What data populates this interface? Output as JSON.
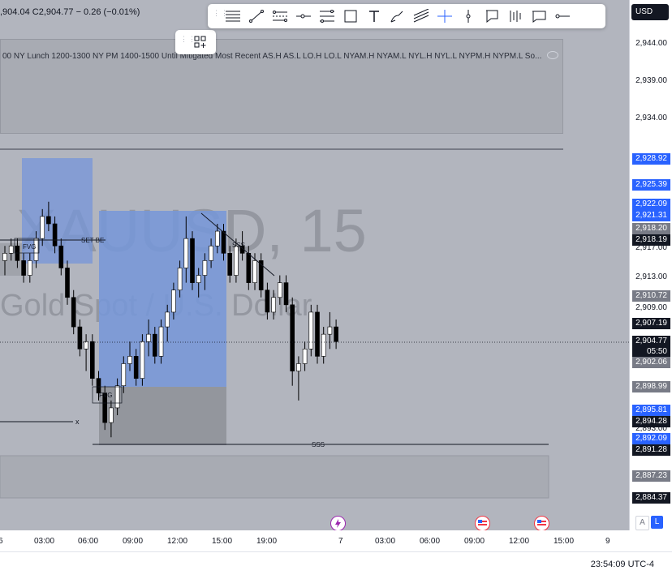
{
  "header": {
    "ohlc_text": ",904.04 C2,904.77 − 0.26 (−0.01%)"
  },
  "legend": {
    "text": "00 NY Lunch 1200-1300 NY PM 1400-1500 Until Mitigated Most Recent AS.H AS.L LO.H LO.L NYAM.H NYAM.L NYL.H NYL.L NYPM.H NYPM.L So..."
  },
  "watermark": {
    "symbol": "XAUUSD, 15",
    "description": "Gold Spot / U.S. Dollar"
  },
  "annotations": {
    "set_be": "SET BE",
    "fvg": "FVG",
    "fvg2": "FVG",
    "sss": "SSS",
    "sss_bottom": "SSS",
    "x_mark": "x"
  },
  "drawing_toolbar": {
    "tools": [
      "horizontal-lines",
      "trend-line",
      "parallel-channel",
      "horizontal-ray",
      "fib-retracement",
      "rectangle",
      "text",
      "brush",
      "regression-trend",
      "crosshair",
      "vertical-line",
      "callout",
      "long-short",
      "comment",
      "ray"
    ]
  },
  "price_scale": {
    "currency": "USD",
    "ticks": [
      "2,944.00",
      "2,939.00",
      "2,934.00",
      "2,917.00",
      "2,913.00",
      "2,909.00",
      "2,893.00"
    ],
    "labels": [
      {
        "text": "2,928.92",
        "bg": "#2962ff",
        "fg": "#ffffff"
      },
      {
        "text": "2,925.39",
        "bg": "#2962ff",
        "fg": "#ffffff"
      },
      {
        "text": "2,922.09",
        "bg": "#2962ff",
        "fg": "#ffffff"
      },
      {
        "text": "2,921.31",
        "bg": "#2962ff",
        "fg": "#ffffff"
      },
      {
        "text": "2,918.20",
        "bg": "#787b86",
        "fg": "#ffffff"
      },
      {
        "text": "2,918.19",
        "bg": "#131722",
        "fg": "#ffffff"
      },
      {
        "text": "2,910.72",
        "bg": "#787b86",
        "fg": "#ffffff"
      },
      {
        "text": "2,907.19",
        "bg": "#131722",
        "fg": "#ffffff"
      },
      {
        "text": "2,904.77",
        "bg": "#131722",
        "fg": "#ffffff"
      },
      {
        "text": "05:50",
        "bg": "#131722",
        "fg": "#ffffff"
      },
      {
        "text": "2,902.06",
        "bg": "#787b86",
        "fg": "#ffffff"
      },
      {
        "text": "2,898.99",
        "bg": "#787b86",
        "fg": "#ffffff"
      },
      {
        "text": "2,895.81",
        "bg": "#2962ff",
        "fg": "#ffffff"
      },
      {
        "text": "2,894.28",
        "bg": "#131722",
        "fg": "#ffffff"
      },
      {
        "text": "2,892.09",
        "bg": "#2962ff",
        "fg": "#ffffff"
      },
      {
        "text": "2,891.28",
        "bg": "#131722",
        "fg": "#ffffff"
      },
      {
        "text": "2,887.23",
        "bg": "#787b86",
        "fg": "#ffffff"
      },
      {
        "text": "2,884.37",
        "bg": "#131722",
        "fg": "#ffffff"
      }
    ]
  },
  "time_axis": {
    "ticks": [
      "6",
      "03:00",
      "06:00",
      "09:00",
      "12:00",
      "15:00",
      "19:00",
      "7",
      "03:00",
      "06:00",
      "09:00",
      "12:00",
      "15:00",
      "9"
    ]
  },
  "scale_buttons": {
    "auto": "A",
    "log": "L"
  },
  "status": {
    "clock": "23:54:09 UTC-4"
  },
  "colors": {
    "chart_bg": "#b2b5be",
    "blue_zone": "#7596d9",
    "accent": "#2962ff",
    "candle_bull": "#ffffff",
    "candle_bear": "#000000"
  },
  "chart_data": {
    "type": "candlestick",
    "title": "XAUUSD, 15",
    "ylim": [
      2882,
      2947
    ],
    "last_price": 2904.77,
    "candles": [
      [
        2916,
        2918,
        2914,
        2917
      ],
      [
        2917,
        2919,
        2916,
        2918
      ],
      [
        2918,
        2919,
        2915,
        2916
      ],
      [
        2916,
        2917,
        2913,
        2914
      ],
      [
        2914,
        2917,
        2913,
        2916
      ],
      [
        2916,
        2920,
        2915,
        2919
      ],
      [
        2919,
        2923,
        2918,
        2922
      ],
      [
        2922,
        2924,
        2920,
        2921
      ],
      [
        2921,
        2922,
        2917,
        2918
      ],
      [
        2918,
        2919,
        2914,
        2915
      ],
      [
        2915,
        2916,
        2910,
        2911
      ],
      [
        2911,
        2912,
        2906,
        2907
      ],
      [
        2907,
        2908,
        2903,
        2904
      ],
      [
        2904,
        2906,
        2901,
        2905
      ],
      [
        2905,
        2906,
        2899,
        2900
      ],
      [
        2900,
        2901,
        2897,
        2898
      ],
      [
        2898,
        2899,
        2893,
        2894
      ],
      [
        2894,
        2897,
        2892,
        2896
      ],
      [
        2896,
        2900,
        2895,
        2899
      ],
      [
        2899,
        2903,
        2898,
        2902
      ],
      [
        2902,
        2905,
        2901,
        2903
      ],
      [
        2903,
        2904,
        2899,
        2900
      ],
      [
        2900,
        2906,
        2899,
        2905
      ],
      [
        2905,
        2908,
        2903,
        2906
      ],
      [
        2906,
        2907,
        2902,
        2903
      ],
      [
        2903,
        2908,
        2902,
        2907
      ],
      [
        2907,
        2910,
        2905,
        2909
      ],
      [
        2909,
        2913,
        2908,
        2912
      ],
      [
        2912,
        2916,
        2911,
        2915
      ],
      [
        2915,
        2922,
        2913,
        2919
      ],
      [
        2919,
        2920,
        2912,
        2913
      ],
      [
        2913,
        2915,
        2911,
        2914
      ],
      [
        2914,
        2917,
        2912,
        2916
      ],
      [
        2916,
        2919,
        2915,
        2918
      ],
      [
        2918,
        2921,
        2917,
        2920
      ],
      [
        2920,
        2921,
        2916,
        2917
      ],
      [
        2917,
        2918,
        2913,
        2914
      ],
      [
        2914,
        2919,
        2913,
        2918
      ],
      [
        2918,
        2920,
        2916,
        2917
      ],
      [
        2917,
        2918,
        2912,
        2913
      ],
      [
        2913,
        2917,
        2912,
        2916
      ],
      [
        2916,
        2917,
        2911,
        2912
      ],
      [
        2912,
        2913,
        2908,
        2909
      ],
      [
        2909,
        2912,
        2908,
        2911
      ],
      [
        2911,
        2914,
        2910,
        2913
      ],
      [
        2913,
        2914,
        2909,
        2910
      ],
      [
        2910,
        2911,
        2899,
        2901
      ],
      [
        2901,
        2903,
        2897,
        2902
      ],
      [
        2902,
        2905,
        2901,
        2904
      ],
      [
        2904,
        2910,
        2903,
        2909
      ],
      [
        2909,
        2910,
        2902,
        2903
      ],
      [
        2903,
        2907,
        2902,
        2906
      ],
      [
        2906,
        2909,
        2904,
        2907
      ],
      [
        2907,
        2908,
        2904,
        2905
      ]
    ]
  }
}
